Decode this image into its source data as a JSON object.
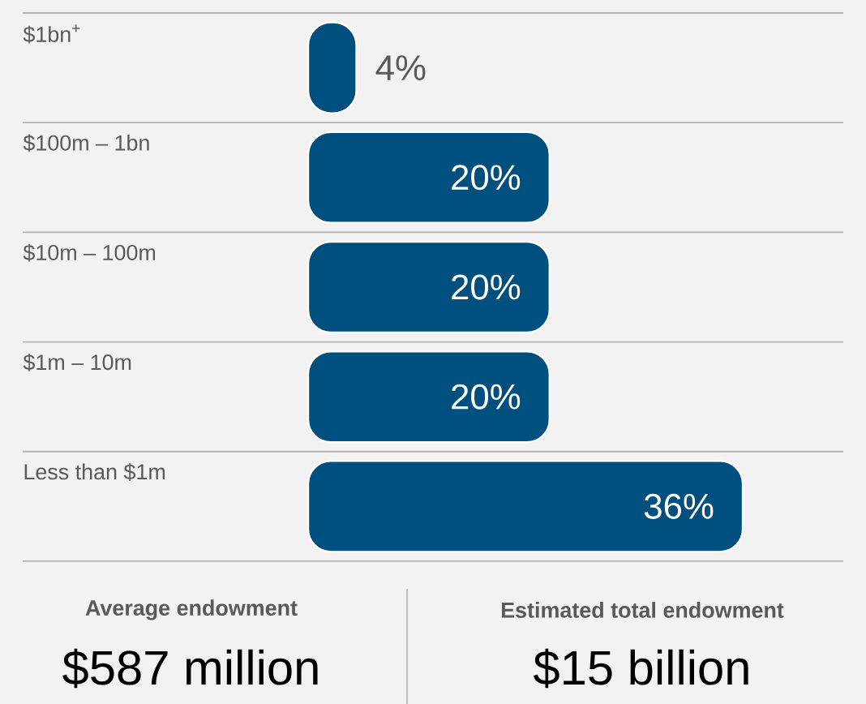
{
  "chart_data": {
    "type": "bar",
    "orientation": "horizontal",
    "categories": [
      "$1bn$^{+}$",
      "$100m – 1bn",
      "$10m – 100m",
      "$1m – 10m",
      "Less than $1m"
    ],
    "values": [
      4,
      20,
      20,
      20,
      36
    ],
    "value_labels": [
      "4%",
      "20%",
      "20%",
      "20%",
      "36%"
    ],
    "color": "#00507f",
    "annotations": [
      "Average endowment",
      "$587 million",
      "Estimated total endowment",
      "$15 billion"
    ]
  }
}
